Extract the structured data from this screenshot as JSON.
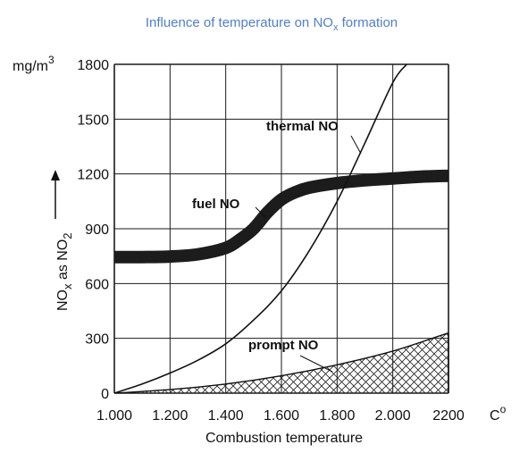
{
  "chart_data": {
    "type": "line",
    "title": "Influence of temperature on NO",
    "title_sub": "x",
    "title_suffix": " formation",
    "y_unit": "mg/m",
    "y_unit_sup": "3",
    "ylabel": "NO",
    "ylabel_sub1": "x",
    "ylabel_mid": " as NO",
    "ylabel_sub2": "2",
    "xlabel": "Combustion temperature",
    "x_unit": "C",
    "x_unit_sup": "o",
    "xlim": [
      1000,
      2200
    ],
    "ylim": [
      0,
      1800
    ],
    "x_tick_labels": [
      "1.000",
      "1.200",
      "1.400",
      "1.600",
      "1.800",
      "2.000",
      "2200"
    ],
    "y_tick_labels": [
      "0",
      "300",
      "600",
      "900",
      "1200",
      "1500",
      "1800"
    ],
    "grid": true,
    "series": [
      {
        "name": "thermal NO",
        "x": [
          1000,
          1100,
          1200,
          1300,
          1400,
          1500,
          1600,
          1700,
          1800,
          1900,
          2000,
          2050
        ],
        "y": [
          0,
          50,
          110,
          180,
          270,
          400,
          560,
          780,
          1050,
          1370,
          1700,
          1800
        ]
      },
      {
        "name": "fuel NO",
        "x": [
          1000,
          1100,
          1200,
          1300,
          1400,
          1450,
          1500,
          1550,
          1600,
          1650,
          1700,
          1800,
          1900,
          2000,
          2100,
          2200
        ],
        "y": [
          745,
          745,
          748,
          760,
          795,
          840,
          900,
          990,
          1060,
          1100,
          1125,
          1150,
          1165,
          1175,
          1185,
          1190
        ]
      },
      {
        "name": "prompt NO",
        "x": [
          1000,
          1200,
          1400,
          1600,
          1800,
          2000,
          2200
        ],
        "y": [
          0,
          20,
          50,
          95,
          155,
          230,
          330
        ]
      }
    ]
  }
}
